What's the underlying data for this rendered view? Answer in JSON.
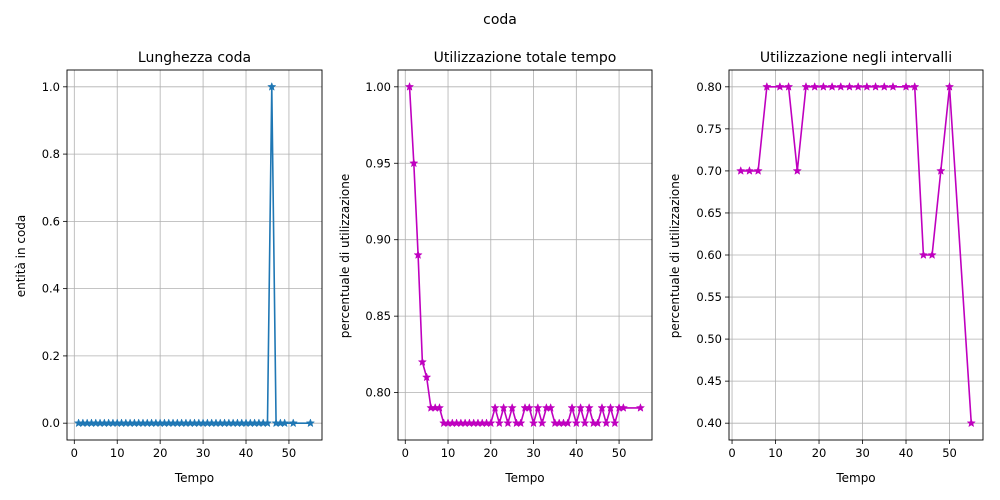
{
  "suptitle": "coda",
  "chart_data": [
    {
      "type": "line",
      "title": "Lunghezza coda",
      "xlabel": "Tempo",
      "ylabel": "entità in coda",
      "color": "#1f77b4",
      "marker": "star",
      "grid": true,
      "xlim": [
        -1.7,
        57.7
      ],
      "ylim": [
        -0.05,
        1.05
      ],
      "xticks": [
        0,
        10,
        20,
        30,
        40,
        50
      ],
      "yticks": [
        0.0,
        0.2,
        0.4,
        0.6,
        0.8,
        1.0
      ],
      "ytick_labels": [
        "0.0",
        "0.2",
        "0.4",
        "0.6",
        "0.8",
        "1.0"
      ],
      "x": [
        1,
        2,
        3,
        4,
        5,
        6,
        7,
        8,
        9,
        10,
        11,
        12,
        13,
        14,
        15,
        16,
        17,
        18,
        19,
        20,
        21,
        22,
        23,
        24,
        25,
        26,
        27,
        28,
        29,
        30,
        31,
        32,
        33,
        34,
        35,
        36,
        37,
        38,
        39,
        40,
        41,
        42,
        43,
        44,
        45,
        46,
        47,
        48,
        49,
        51,
        55
      ],
      "y": [
        0,
        0,
        0,
        0,
        0,
        0,
        0,
        0,
        0,
        0,
        0,
        0,
        0,
        0,
        0,
        0,
        0,
        0,
        0,
        0,
        0,
        0,
        0,
        0,
        0,
        0,
        0,
        0,
        0,
        0,
        0,
        0,
        0,
        0,
        0,
        0,
        0,
        0,
        0,
        0,
        0,
        0,
        0,
        0,
        0,
        1,
        0,
        0,
        0,
        0,
        0
      ]
    },
    {
      "type": "line",
      "title": "Utilizzazione totale tempo",
      "xlabel": "Tempo",
      "ylabel": "percentuale di utilizzazione",
      "color": "#bf00bf",
      "marker": "star",
      "grid": true,
      "xlim": [
        -1.7,
        57.7
      ],
      "ylim": [
        0.769,
        1.011
      ],
      "xticks": [
        0,
        10,
        20,
        30,
        40,
        50
      ],
      "yticks": [
        0.8,
        0.85,
        0.9,
        0.95,
        1.0
      ],
      "ytick_labels": [
        "0.80",
        "0.85",
        "0.90",
        "0.95",
        "1.00"
      ],
      "x": [
        1,
        2,
        3,
        4,
        5,
        6,
        7,
        8,
        9,
        10,
        11,
        12,
        13,
        14,
        15,
        16,
        17,
        18,
        19,
        20,
        21,
        22,
        23,
        24,
        25,
        26,
        27,
        28,
        29,
        30,
        31,
        32,
        33,
        34,
        35,
        36,
        37,
        38,
        39,
        40,
        41,
        42,
        43,
        44,
        45,
        46,
        47,
        48,
        49,
        50,
        51,
        55
      ],
      "y": [
        1.0,
        0.95,
        0.89,
        0.82,
        0.81,
        0.79,
        0.79,
        0.79,
        0.78,
        0.78,
        0.78,
        0.78,
        0.78,
        0.78,
        0.78,
        0.78,
        0.78,
        0.78,
        0.78,
        0.78,
        0.79,
        0.78,
        0.79,
        0.78,
        0.79,
        0.78,
        0.78,
        0.79,
        0.79,
        0.78,
        0.79,
        0.78,
        0.79,
        0.79,
        0.78,
        0.78,
        0.78,
        0.78,
        0.79,
        0.78,
        0.79,
        0.78,
        0.79,
        0.78,
        0.78,
        0.79,
        0.78,
        0.79,
        0.78,
        0.79,
        0.79,
        0.79
      ]
    },
    {
      "type": "line",
      "title": "Utilizzazione negli intervalli",
      "xlabel": "Tempo",
      "ylabel": "percentuale di utilizzazione",
      "color": "#bf00bf",
      "marker": "star",
      "grid": true,
      "xlim": [
        -0.7,
        57.7
      ],
      "ylim": [
        0.38,
        0.82
      ],
      "xticks": [
        0,
        10,
        20,
        30,
        40,
        50
      ],
      "yticks": [
        0.4,
        0.45,
        0.5,
        0.55,
        0.6,
        0.65,
        0.7,
        0.75,
        0.8
      ],
      "ytick_labels": [
        "0.40",
        "0.45",
        "0.50",
        "0.55",
        "0.60",
        "0.65",
        "0.70",
        "0.75",
        "0.80"
      ],
      "x": [
        2,
        4,
        6,
        8,
        11,
        13,
        15,
        17,
        19,
        21,
        23,
        25,
        27,
        29,
        31,
        33,
        35,
        37,
        40,
        42,
        44,
        46,
        48,
        50,
        55
      ],
      "y": [
        0.7,
        0.7,
        0.7,
        0.8,
        0.8,
        0.8,
        0.7,
        0.8,
        0.8,
        0.8,
        0.8,
        0.8,
        0.8,
        0.8,
        0.8,
        0.8,
        0.8,
        0.8,
        0.8,
        0.8,
        0.6,
        0.6,
        0.7,
        0.8,
        0.4
      ]
    }
  ]
}
